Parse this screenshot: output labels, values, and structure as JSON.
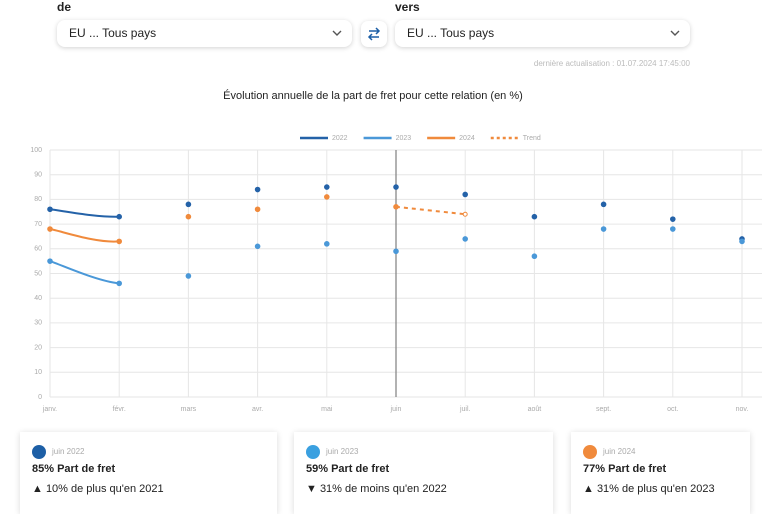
{
  "ui": {
    "from_label": "de",
    "from_value": "EU ... Tous pays",
    "to_label": "vers",
    "to_value": "EU ... Tous pays",
    "updated": "dernière actualisation : 01.07.2024 17:45:00"
  },
  "chart_data": {
    "type": "line",
    "title": "Évolution annuelle de la part de fret pour cette relation (en %)",
    "categories": [
      "janv.",
      "févr.",
      "mars",
      "avr.",
      "mai",
      "juin",
      "juil.",
      "août",
      "sept.",
      "oct.",
      "nov."
    ],
    "series": [
      {
        "name": "2022",
        "color": "#2462a8",
        "values": [
          76,
          73,
          78,
          84,
          85,
          85,
          82,
          73,
          78,
          72,
          64
        ]
      },
      {
        "name": "2023",
        "color": "#4a98d8",
        "values": [
          55,
          46,
          49,
          61,
          62,
          59,
          64,
          57,
          68,
          68,
          63
        ]
      },
      {
        "name": "2024",
        "color": "#f08a3c",
        "values": [
          68,
          63,
          73,
          76,
          81,
          77,
          null,
          null,
          null,
          null,
          null
        ]
      },
      {
        "name": "Trend",
        "color": "#f08a3c",
        "dashed": true,
        "values": [
          null,
          null,
          null,
          null,
          null,
          77,
          74,
          null,
          null,
          null,
          null
        ]
      }
    ],
    "ylim": [
      0,
      100
    ],
    "yticks": [
      0,
      10,
      20,
      30,
      40,
      50,
      60,
      70,
      80,
      90,
      100
    ],
    "grid": true,
    "legend": "top"
  },
  "cards": [
    {
      "color": "#1d5fa6",
      "period": "juin 2022",
      "headline": "85% Part de fret",
      "change": "▲ 10% de plus qu'en 2021"
    },
    {
      "color": "#3aa0e0",
      "period": "juin 2023",
      "headline": "59% Part de fret",
      "change": "▼ 31% de moins qu'en 2022"
    },
    {
      "color": "#f08a3c",
      "period": "juin 2024",
      "headline": "77% Part de fret",
      "change": "▲ 31% de plus qu'en 2023"
    }
  ]
}
